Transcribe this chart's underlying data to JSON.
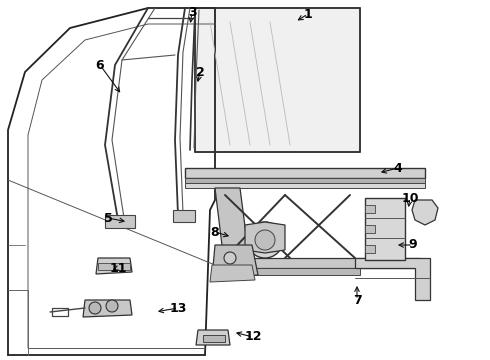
{
  "background_color": "#ffffff",
  "fig_width": 4.9,
  "fig_height": 3.6,
  "dpi": 100,
  "arrow_color": "#111111",
  "label_color": "#000000",
  "label_fontsize": 9,
  "line_color": "#444444",
  "line_width": 0.9,
  "labels": [
    [
      "1",
      308,
      14,
      295,
      22
    ],
    [
      "2",
      200,
      72,
      197,
      85
    ],
    [
      "3",
      192,
      12,
      190,
      26
    ],
    [
      "4",
      398,
      168,
      378,
      173
    ],
    [
      "5",
      108,
      218,
      128,
      222
    ],
    [
      "6",
      100,
      65,
      122,
      95
    ],
    [
      "7",
      357,
      300,
      357,
      283
    ],
    [
      "8",
      215,
      232,
      232,
      237
    ],
    [
      "9",
      413,
      245,
      395,
      245
    ],
    [
      "10",
      410,
      198,
      408,
      210
    ],
    [
      "11",
      118,
      268,
      110,
      271
    ],
    [
      "12",
      253,
      337,
      233,
      332
    ],
    [
      "13",
      178,
      308,
      155,
      312
    ]
  ]
}
